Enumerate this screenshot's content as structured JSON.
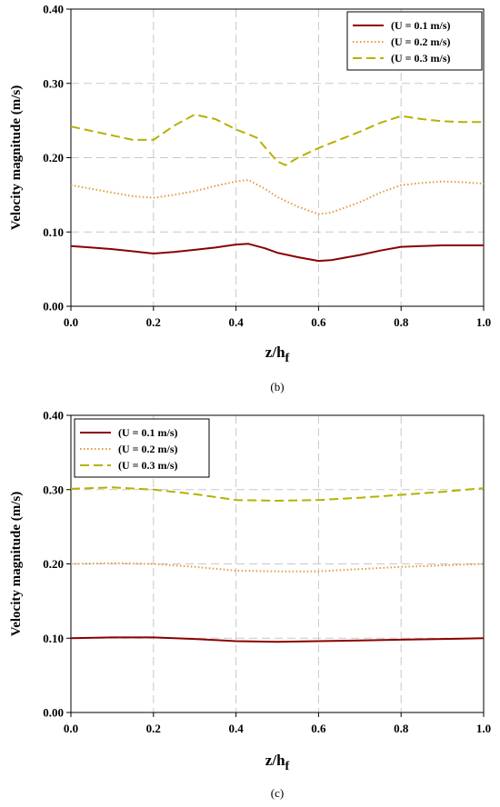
{
  "colors": {
    "grid": "#c8c8c8",
    "series": [
      "#8b0000",
      "#e39a3a",
      "#b8b000"
    ]
  },
  "chart_data": [
    {
      "type": "line",
      "caption": "(b)",
      "xlabel": "z/h",
      "xlabel_sub": "f",
      "ylabel": "Velocity magnitude (m/s)",
      "xlim": [
        0.0,
        1.0
      ],
      "ylim": [
        0.0,
        0.4
      ],
      "xticks": [
        "0.0",
        "0.2",
        "0.4",
        "0.6",
        "0.8",
        "1.0"
      ],
      "yticks": [
        "0.00",
        "0.10",
        "0.20",
        "0.30",
        "0.40"
      ],
      "grid": true,
      "legend_position": "top-right",
      "series": [
        {
          "name": "(U = 0.1 m/s)",
          "style": "solid",
          "x": [
            0.0,
            0.05,
            0.1,
            0.15,
            0.2,
            0.25,
            0.3,
            0.35,
            0.4,
            0.43,
            0.47,
            0.5,
            0.55,
            0.6,
            0.63,
            0.7,
            0.75,
            0.8,
            0.85,
            0.9,
            0.95,
            1.0
          ],
          "y": [
            0.081,
            0.079,
            0.077,
            0.074,
            0.071,
            0.073,
            0.076,
            0.079,
            0.083,
            0.084,
            0.078,
            0.072,
            0.066,
            0.061,
            0.062,
            0.069,
            0.075,
            0.08,
            0.081,
            0.082,
            0.082,
            0.082
          ]
        },
        {
          "name": "(U = 0.2 m/s)",
          "style": "dotted",
          "x": [
            0.0,
            0.05,
            0.1,
            0.15,
            0.2,
            0.25,
            0.3,
            0.35,
            0.4,
            0.43,
            0.47,
            0.5,
            0.55,
            0.6,
            0.63,
            0.7,
            0.75,
            0.8,
            0.85,
            0.9,
            0.95,
            1.0
          ],
          "y": [
            0.163,
            0.158,
            0.153,
            0.148,
            0.146,
            0.15,
            0.155,
            0.162,
            0.168,
            0.17,
            0.158,
            0.147,
            0.134,
            0.124,
            0.126,
            0.14,
            0.153,
            0.163,
            0.166,
            0.168,
            0.167,
            0.165
          ]
        },
        {
          "name": "(U = 0.3 m/s)",
          "style": "dashed",
          "x": [
            0.0,
            0.05,
            0.1,
            0.15,
            0.2,
            0.25,
            0.3,
            0.35,
            0.4,
            0.45,
            0.5,
            0.52,
            0.55,
            0.6,
            0.65,
            0.7,
            0.75,
            0.8,
            0.85,
            0.9,
            0.95,
            1.0
          ],
          "y": [
            0.242,
            0.236,
            0.23,
            0.224,
            0.224,
            0.243,
            0.258,
            0.252,
            0.238,
            0.227,
            0.195,
            0.19,
            0.2,
            0.213,
            0.224,
            0.235,
            0.247,
            0.256,
            0.252,
            0.249,
            0.248,
            0.248
          ]
        }
      ]
    },
    {
      "type": "line",
      "caption": "(c)",
      "xlabel": "z/h",
      "xlabel_sub": "f",
      "ylabel": "Velocity magnitude (m/s)",
      "xlim": [
        0.0,
        1.0
      ],
      "ylim": [
        0.0,
        0.4
      ],
      "xticks": [
        "0.0",
        "0.2",
        "0.4",
        "0.6",
        "0.8",
        "1.0"
      ],
      "yticks": [
        "0.00",
        "0.10",
        "0.20",
        "0.30",
        "0.40"
      ],
      "grid": true,
      "legend_position": "top-left",
      "series": [
        {
          "name": "(U = 0.1 m/s)",
          "style": "solid",
          "x": [
            0.0,
            0.1,
            0.2,
            0.3,
            0.4,
            0.5,
            0.6,
            0.7,
            0.8,
            0.9,
            1.0
          ],
          "y": [
            0.1,
            0.101,
            0.101,
            0.099,
            0.096,
            0.095,
            0.096,
            0.097,
            0.098,
            0.099,
            0.1
          ]
        },
        {
          "name": "(U = 0.2 m/s)",
          "style": "dotted",
          "x": [
            0.0,
            0.1,
            0.2,
            0.3,
            0.4,
            0.5,
            0.6,
            0.7,
            0.8,
            0.9,
            1.0
          ],
          "y": [
            0.2,
            0.201,
            0.2,
            0.196,
            0.191,
            0.19,
            0.19,
            0.193,
            0.196,
            0.198,
            0.2
          ]
        },
        {
          "name": "(U = 0.3 m/s)",
          "style": "dashed",
          "x": [
            0.0,
            0.1,
            0.2,
            0.3,
            0.4,
            0.5,
            0.6,
            0.7,
            0.8,
            0.9,
            1.0
          ],
          "y": [
            0.301,
            0.303,
            0.3,
            0.294,
            0.286,
            0.285,
            0.286,
            0.289,
            0.293,
            0.297,
            0.302
          ]
        }
      ]
    }
  ]
}
